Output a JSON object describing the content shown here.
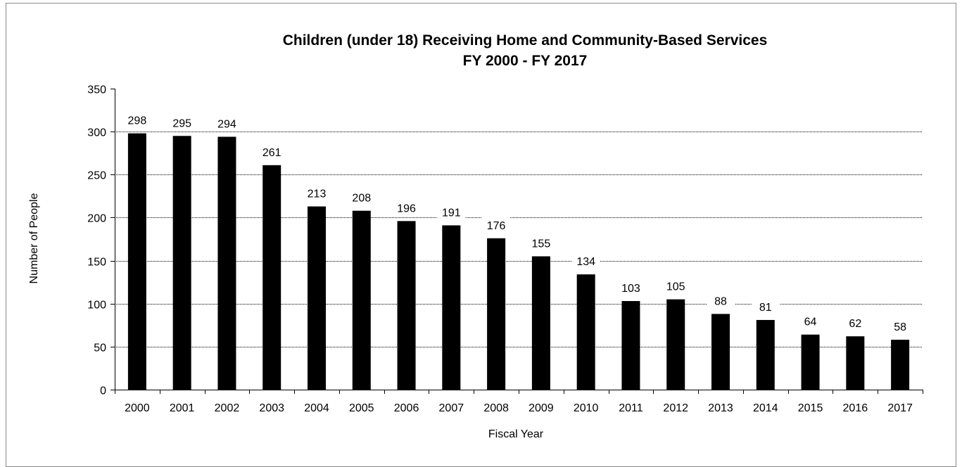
{
  "chart_data": {
    "type": "bar",
    "title": "Children (under 18) Receiving Home and Community-Based Services",
    "subtitle": "FY 2000 - FY 2017",
    "xlabel": "Fiscal Year",
    "ylabel": "Number of People",
    "ylim": [
      0,
      350
    ],
    "yticks": [
      0,
      50,
      100,
      150,
      200,
      250,
      300,
      350
    ],
    "categories": [
      "2000",
      "2001",
      "2002",
      "2003",
      "2004",
      "2005",
      "2006",
      "2007",
      "2008",
      "2009",
      "2010",
      "2011",
      "2012",
      "2013",
      "2014",
      "2015",
      "2016",
      "2017"
    ],
    "values": [
      298,
      295,
      294,
      261,
      213,
      208,
      196,
      191,
      176,
      155,
      134,
      103,
      105,
      88,
      81,
      64,
      62,
      58
    ],
    "bar_color": "#000000",
    "grid": "horizontal dotted",
    "legend": "none"
  }
}
